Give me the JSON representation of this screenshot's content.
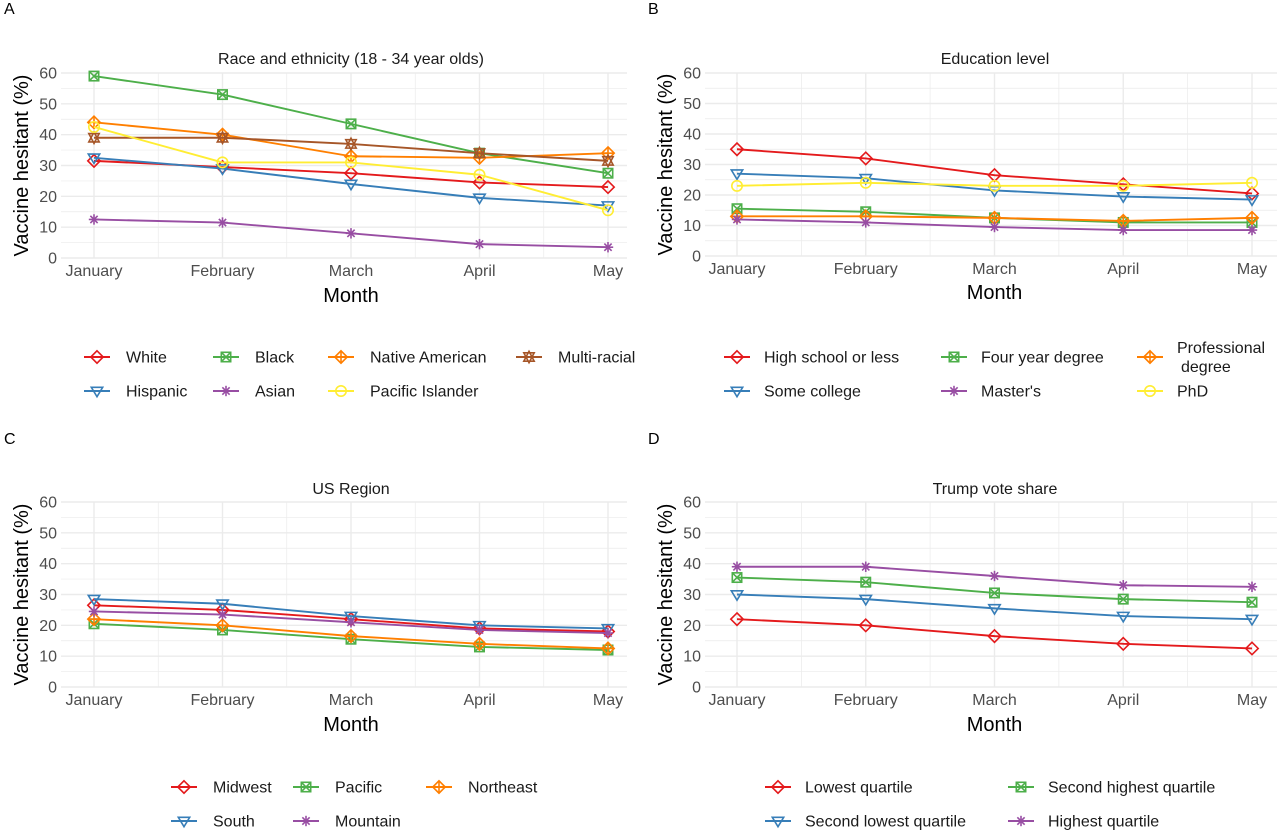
{
  "chart_data": [
    {
      "panel_label": "A",
      "type": "line",
      "title": "Race and ethnicity (18 - 34 year olds)",
      "xlabel": "Month",
      "ylabel": "Vaccine hesitant (%)",
      "categories": [
        "January",
        "February",
        "March",
        "April",
        "May"
      ],
      "ylim": [
        0,
        60
      ],
      "yticks": [
        0,
        10,
        20,
        30,
        40,
        50,
        60
      ],
      "grid": true,
      "legend": "bottom",
      "series": [
        {
          "name": "White",
          "color": "#e41a1c",
          "marker": "diamond",
          "values": [
            31.5,
            29.5,
            27.5,
            24.5,
            23
          ]
        },
        {
          "name": "Black",
          "color": "#4daf4a",
          "marker": "square-x",
          "values": [
            59,
            53,
            43.5,
            34,
            27.5
          ]
        },
        {
          "name": "Native American",
          "color": "#ff7f00",
          "marker": "diamond-plus",
          "values": [
            44,
            40,
            33,
            32.5,
            34
          ]
        },
        {
          "name": "Multi-racial",
          "color": "#a65628",
          "marker": "star",
          "values": [
            39,
            39,
            37,
            34,
            31.5
          ]
        },
        {
          "name": "Hispanic",
          "color": "#377eb8",
          "marker": "triangle-down",
          "values": [
            32.5,
            29,
            24,
            19.5,
            17
          ]
        },
        {
          "name": "Asian",
          "color": "#984ea3",
          "marker": "asterisk",
          "values": [
            12.5,
            11.5,
            8,
            4.5,
            3.5
          ]
        },
        {
          "name": "Pacific Islander",
          "color": "#ffed33",
          "marker": "circle",
          "values": [
            42.5,
            31,
            31,
            27,
            15.5
          ]
        }
      ]
    },
    {
      "panel_label": "B",
      "type": "line",
      "title": "Education level",
      "xlabel": "Month",
      "ylabel": "Vaccine hesitant (%)",
      "categories": [
        "January",
        "February",
        "March",
        "April",
        "May"
      ],
      "ylim": [
        0,
        60
      ],
      "yticks": [
        0,
        10,
        20,
        30,
        40,
        50,
        60
      ],
      "grid": true,
      "legend": "bottom",
      "series": [
        {
          "name": "High school or less",
          "color": "#e41a1c",
          "marker": "diamond",
          "values": [
            35,
            32,
            26.5,
            23.5,
            20.5
          ]
        },
        {
          "name": "Four year degree",
          "color": "#4daf4a",
          "marker": "square-x",
          "values": [
            15.5,
            14.5,
            12.5,
            11,
            11
          ]
        },
        {
          "name": "Professional\ndegree",
          "color": "#ff7f00",
          "marker": "diamond-plus",
          "values": [
            13,
            13,
            12.5,
            11.5,
            12.5
          ]
        },
        {
          "name": "Some college",
          "color": "#377eb8",
          "marker": "triangle-down",
          "values": [
            27,
            25.5,
            21.5,
            19.5,
            18.5
          ]
        },
        {
          "name": "Master's",
          "color": "#984ea3",
          "marker": "asterisk",
          "values": [
            12,
            11,
            9.5,
            8.5,
            8.5
          ]
        },
        {
          "name": "PhD",
          "color": "#ffed33",
          "marker": "circle",
          "values": [
            23,
            24,
            23,
            23,
            24
          ]
        }
      ]
    },
    {
      "panel_label": "C",
      "type": "line",
      "title": "US Region",
      "xlabel": "Month",
      "ylabel": "Vaccine hesitant (%)",
      "categories": [
        "January",
        "February",
        "March",
        "April",
        "May"
      ],
      "ylim": [
        0,
        60
      ],
      "yticks": [
        0,
        10,
        20,
        30,
        40,
        50,
        60
      ],
      "grid": true,
      "legend": "bottom",
      "series": [
        {
          "name": "Midwest",
          "color": "#e41a1c",
          "marker": "diamond",
          "values": [
            26.5,
            25,
            22,
            19,
            18
          ]
        },
        {
          "name": "Pacific",
          "color": "#4daf4a",
          "marker": "square-x",
          "values": [
            20.5,
            18.5,
            15.5,
            13,
            12
          ]
        },
        {
          "name": "Northeast",
          "color": "#ff7f00",
          "marker": "diamond-plus",
          "values": [
            22,
            20,
            16.5,
            14,
            12.5
          ]
        },
        {
          "name": "South",
          "color": "#377eb8",
          "marker": "triangle-down",
          "values": [
            28.5,
            27,
            23,
            20,
            19
          ]
        },
        {
          "name": "Mountain",
          "color": "#984ea3",
          "marker": "asterisk",
          "values": [
            24.5,
            23.5,
            21,
            18.5,
            17.5
          ]
        }
      ]
    },
    {
      "panel_label": "D",
      "type": "line",
      "title": "Trump vote share",
      "xlabel": "Month",
      "ylabel": "Vaccine hesitant (%)",
      "categories": [
        "January",
        "February",
        "March",
        "April",
        "May"
      ],
      "ylim": [
        0,
        60
      ],
      "yticks": [
        0,
        10,
        20,
        30,
        40,
        50,
        60
      ],
      "grid": true,
      "legend": "bottom",
      "series": [
        {
          "name": "Lowest quartile",
          "color": "#e41a1c",
          "marker": "diamond",
          "values": [
            22,
            20,
            16.5,
            14,
            12.5
          ]
        },
        {
          "name": "Second highest quartile",
          "color": "#4daf4a",
          "marker": "square-x",
          "values": [
            35.5,
            34,
            30.5,
            28.5,
            27.5
          ]
        },
        {
          "name": "Second lowest quartile",
          "color": "#377eb8",
          "marker": "triangle-down",
          "values": [
            30,
            28.5,
            25.5,
            23,
            22
          ]
        },
        {
          "name": "Highest quartile",
          "color": "#984ea3",
          "marker": "asterisk",
          "values": [
            39,
            39,
            36,
            33,
            32.5
          ]
        }
      ]
    }
  ]
}
